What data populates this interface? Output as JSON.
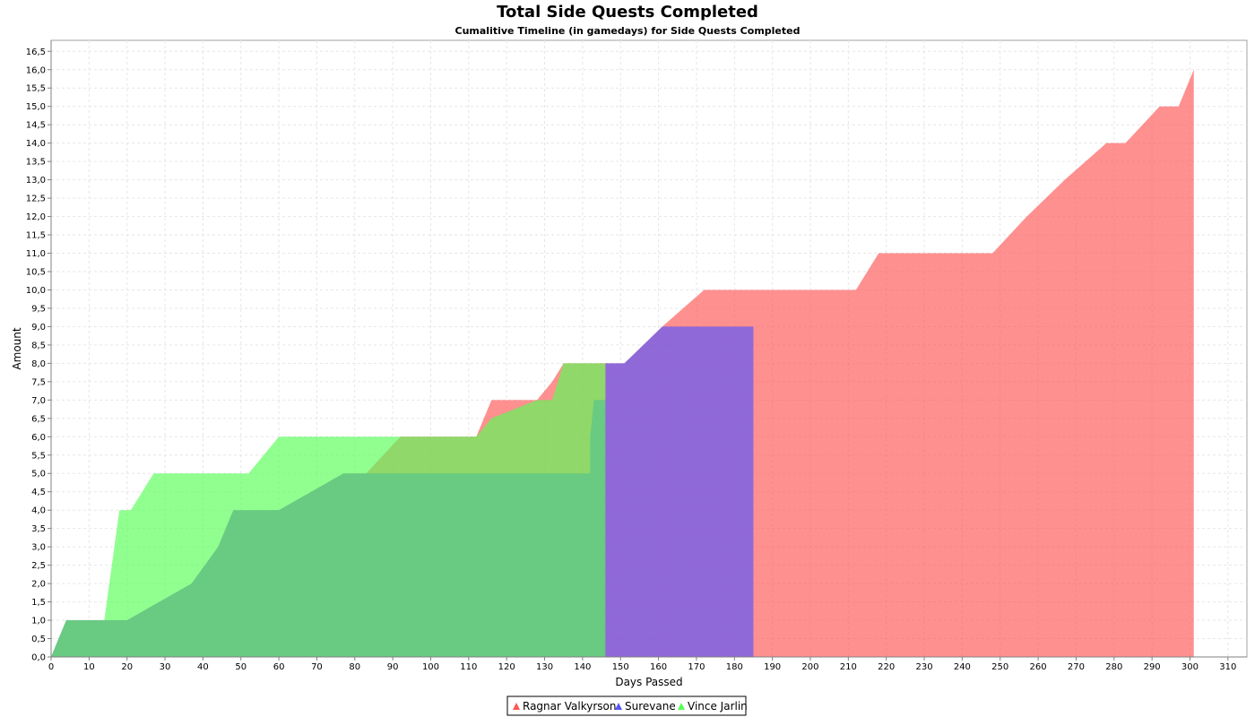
{
  "chart_data": {
    "type": "area",
    "title": "Total Side Quests Completed",
    "subtitle": "Cumalitive Timeline (in gamedays) for Side Quests Completed",
    "xlabel": "Days Passed",
    "ylabel": "Amount",
    "xlim": [
      0,
      315
    ],
    "ylim": [
      0,
      16.8
    ],
    "x_ticks": [
      0,
      10,
      20,
      30,
      40,
      50,
      60,
      70,
      80,
      90,
      100,
      110,
      120,
      130,
      140,
      150,
      160,
      170,
      180,
      190,
      200,
      210,
      220,
      230,
      240,
      250,
      260,
      270,
      280,
      290,
      300,
      310
    ],
    "y_ticks": [
      0,
      0.5,
      1,
      1.5,
      2,
      2.5,
      3,
      3.5,
      4,
      4.5,
      5,
      5.5,
      6,
      6.5,
      7,
      7.5,
      8,
      8.5,
      9,
      9.5,
      10,
      10.5,
      11,
      11.5,
      12,
      12.5,
      13,
      13.5,
      14,
      14.5,
      15,
      15.5,
      16,
      16.5
    ],
    "y_tick_labels": [
      "0,0",
      "0,5",
      "1,0",
      "1,5",
      "2,0",
      "2,5",
      "3,0",
      "3,5",
      "4,0",
      "4,5",
      "5,0",
      "5,5",
      "6,0",
      "6,5",
      "7,0",
      "7,5",
      "8,0",
      "8,5",
      "9,0",
      "9,5",
      "10,0",
      "10,5",
      "11,0",
      "11,5",
      "12,0",
      "12,5",
      "13,0",
      "13,5",
      "14,0",
      "14,5",
      "15,0",
      "15,5",
      "16,0",
      "16,5"
    ],
    "grid": true,
    "legend_position": "bottom-center",
    "series": [
      {
        "name": "Ragnar Valkyrson",
        "color": "#ff5555",
        "x": [
          0,
          4,
          7,
          20,
          37,
          44,
          48,
          60,
          77,
          83,
          92,
          112,
          116,
          128,
          132,
          135,
          138,
          143,
          146,
          151,
          161,
          172,
          184,
          212,
          218,
          248,
          257,
          267,
          278,
          283,
          292,
          297,
          301
        ],
        "y": [
          0,
          1,
          1,
          1,
          2,
          3,
          4,
          4,
          5,
          5,
          6,
          6,
          7,
          7,
          7.5,
          8,
          8,
          8,
          8,
          8,
          9,
          10,
          10,
          10,
          11,
          11,
          12,
          13,
          14,
          14,
          15,
          15,
          16
        ]
      },
      {
        "name": "Surevane",
        "color": "#5555ff",
        "x": [
          0,
          4,
          7,
          20,
          37,
          44,
          48,
          60,
          77,
          77.01,
          142,
          142.01,
          143,
          146,
          146.01,
          147,
          151,
          161,
          185
        ],
        "y": [
          0,
          1,
          1,
          1,
          2,
          3,
          4,
          4,
          5,
          5,
          5,
          6,
          7,
          7,
          8,
          8,
          8,
          9,
          9
        ]
      },
      {
        "name": "Vince Jarlin",
        "color": "#55ff55",
        "x": [
          0,
          4,
          14,
          18,
          21,
          27,
          52,
          60,
          83,
          92,
          112,
          116,
          128,
          132,
          135,
          138,
          146
        ],
        "y": [
          0,
          1,
          1,
          4,
          4,
          5,
          5,
          6,
          6,
          6,
          6,
          6.5,
          7,
          7,
          8,
          8,
          8
        ]
      }
    ]
  }
}
